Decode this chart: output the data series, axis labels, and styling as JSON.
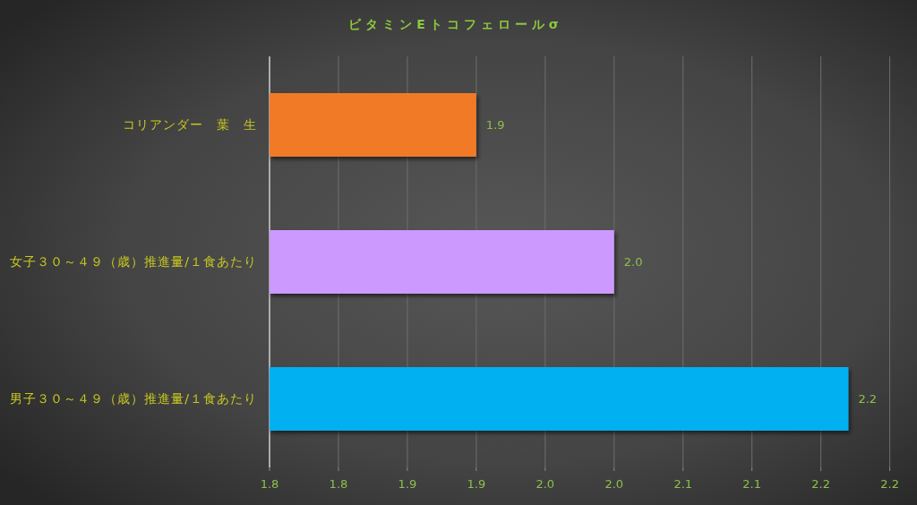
{
  "chart_data": {
    "type": "bar",
    "orientation": "horizontal",
    "title": "ビタミンEトコフェロールσ",
    "categories": [
      "コリアンダー　葉　生",
      "女子３０～４９（歳）推進量/１食あたり",
      "男子３０～４９（歳）推進量/１食あたり"
    ],
    "values": [
      1.9,
      2.0,
      2.17
    ],
    "colors": [
      "#f07a28",
      "#cc99ff",
      "#00b0f0"
    ],
    "value_labels": [
      "1.9",
      "2.0",
      "2.2"
    ],
    "xlim": [
      1.75,
      2.2
    ],
    "xticks": [
      {
        "value": 1.75,
        "label": "1.8"
      },
      1.8,
      {
        "value": 1.85,
        "label": "1.9"
      },
      1.9,
      {
        "value": 1.95,
        "label": "2.0"
      },
      {
        "value": 2,
        "label": "2.0"
      },
      {
        "value": 2.05,
        "label": "2.1"
      },
      2.1,
      {
        "value": 2.15,
        "label": "2.2"
      },
      2.2
    ],
    "grid": "x"
  }
}
